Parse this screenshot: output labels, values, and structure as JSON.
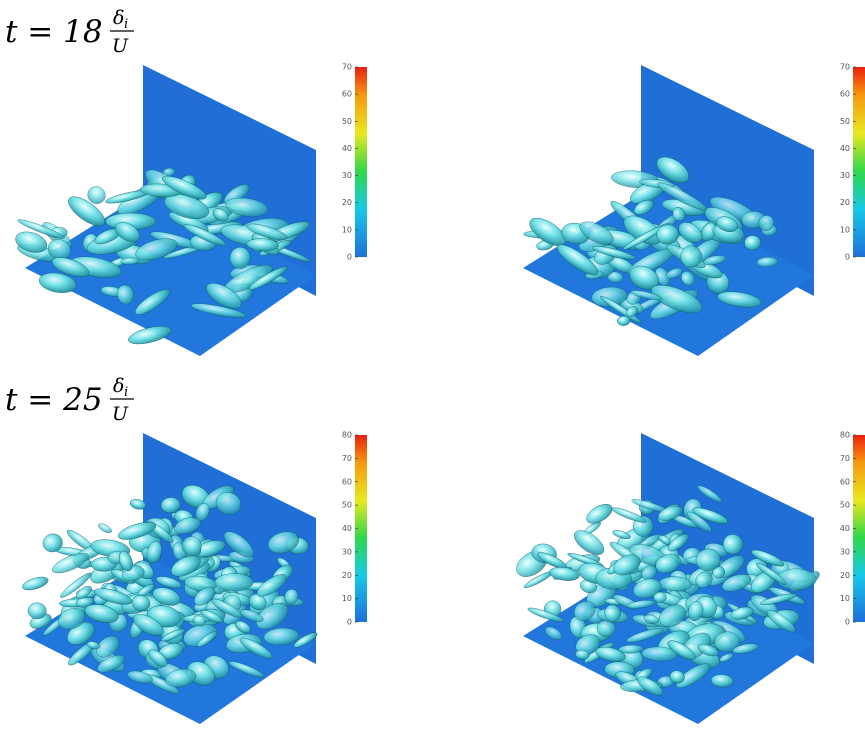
{
  "rows": [
    {
      "label": {
        "text": "t = 18",
        "numerator": "δ",
        "subscript": "i",
        "denominator": "U"
      },
      "panels": [
        {
          "colorbar": {
            "lim": [
              0,
              70
            ],
            "ticks": [
              0,
              10,
              20,
              30,
              40,
              50,
              60,
              70
            ]
          }
        },
        {
          "colorbar": {
            "lim": [
              0,
              70
            ],
            "ticks": [
              0,
              10,
              20,
              30,
              40,
              50,
              60,
              70
            ]
          }
        }
      ]
    },
    {
      "label": {
        "text": "t = 25",
        "numerator": "δ",
        "subscript": "i",
        "denominator": "U"
      },
      "panels": [
        {
          "colorbar": {
            "lim": [
              0,
              80
            ],
            "ticks": [
              0,
              10,
              20,
              30,
              40,
              50,
              60,
              70,
              80
            ]
          }
        },
        {
          "colorbar": {
            "lim": [
              0,
              80
            ],
            "ticks": [
              0,
              10,
              20,
              30,
              40,
              50,
              60,
              70,
              80
            ]
          }
        }
      ]
    }
  ]
}
